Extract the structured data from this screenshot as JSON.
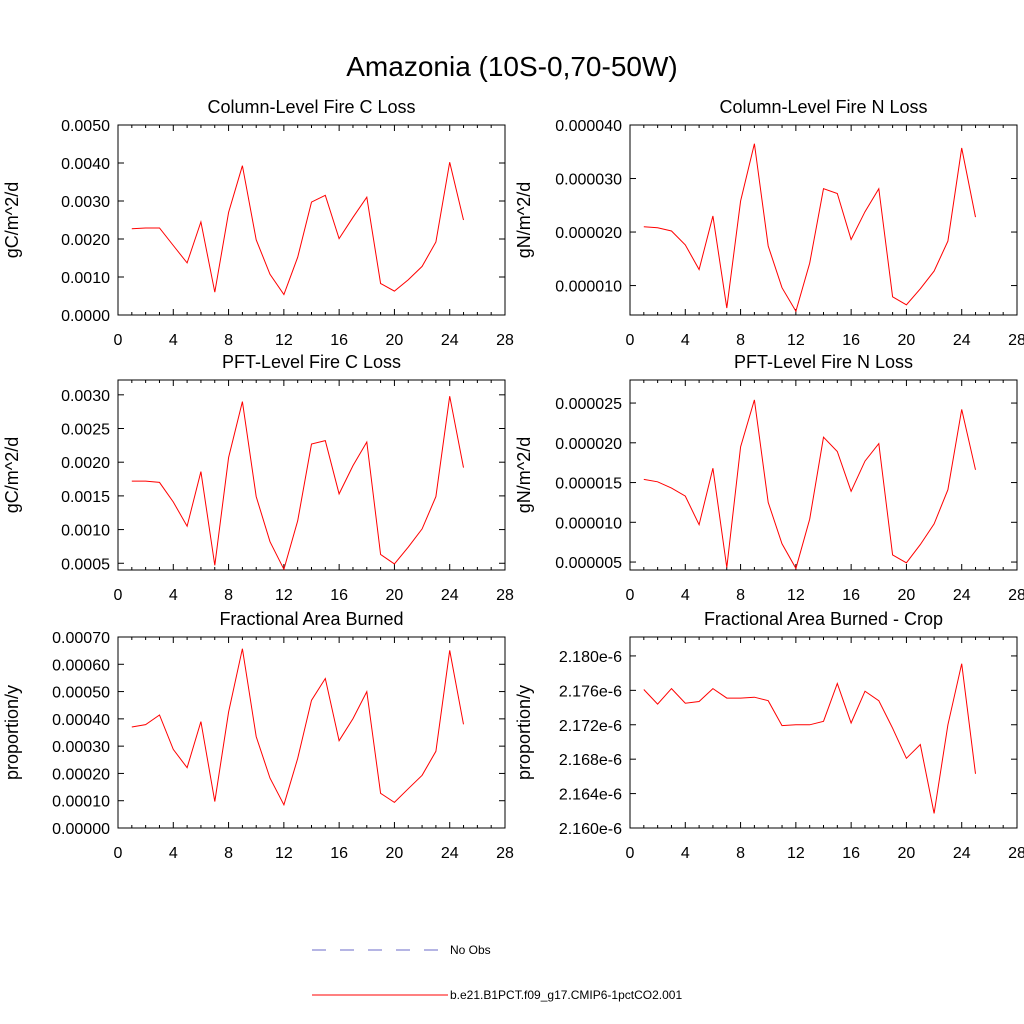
{
  "figure": {
    "title": "Amazonia (10S-0,70-50W)"
  },
  "legend": {
    "items": [
      {
        "label": "No Obs",
        "color": "#6b6bc8",
        "dashed": true
      },
      {
        "label": "b.e21.B1PCT.f09_g17.CMIP6-1pctCO2.001",
        "color": "#ff0000",
        "dashed": false
      }
    ]
  },
  "chart_data": [
    {
      "type": "line",
      "title": "Column-Level Fire C Loss",
      "xlabel": "",
      "ylabel": "gC/m^2/d",
      "xlim": [
        0,
        28
      ],
      "ylim": [
        0,
        0.005
      ],
      "xticks": [
        "0",
        "4",
        "8",
        "12",
        "16",
        "20",
        "24",
        "28"
      ],
      "yticks": [
        "0.0000",
        "0.0010",
        "0.0020",
        "0.0030",
        "0.0040",
        "0.0050"
      ],
      "series": [
        {
          "color": "#ff0000",
          "x": [
            1,
            2,
            3,
            4,
            5,
            6,
            7,
            8,
            9,
            10,
            11,
            12,
            13,
            14,
            15,
            16,
            17,
            18,
            19,
            20,
            21,
            22,
            23,
            24,
            25
          ],
          "y": [
            0.00227,
            0.00229,
            0.00229,
            0.00183,
            0.00137,
            0.00245,
            0.0006,
            0.0027,
            0.00393,
            0.00198,
            0.00107,
            0.00054,
            0.00152,
            0.00297,
            0.00315,
            0.00201,
            0.00257,
            0.0031,
            0.00083,
            0.00063,
            0.00093,
            0.00128,
            0.00192,
            0.00402,
            0.0025
          ]
        }
      ]
    },
    {
      "type": "line",
      "title": "Column-Level Fire N Loss",
      "xlabel": "",
      "ylabel": "gN/m^2/d",
      "xlim": [
        0,
        28
      ],
      "ylim": [
        4.5e-06,
        4e-05
      ],
      "xticks": [
        "0",
        "4",
        "8",
        "12",
        "16",
        "20",
        "24",
        "28"
      ],
      "yticks": [
        "0.000010",
        "0.000020",
        "0.000030",
        "0.000040"
      ],
      "series": [
        {
          "color": "#ff0000",
          "x": [
            1,
            2,
            3,
            4,
            5,
            6,
            7,
            8,
            9,
            10,
            11,
            12,
            13,
            14,
            15,
            16,
            17,
            18,
            19,
            20,
            21,
            22,
            23,
            24,
            25
          ],
          "y": [
            2.1e-05,
            2.08e-05,
            2.02e-05,
            1.76e-05,
            1.3e-05,
            2.3e-05,
            5.8e-06,
            2.58e-05,
            3.65e-05,
            1.74e-05,
            9.6e-06,
            5.2e-06,
            1.42e-05,
            2.81e-05,
            2.72e-05,
            1.86e-05,
            2.38e-05,
            2.81e-05,
            7.9e-06,
            6.4e-06,
            9.4e-06,
            1.27e-05,
            1.83e-05,
            3.57e-05,
            2.28e-05
          ]
        }
      ]
    },
    {
      "type": "line",
      "title": "PFT-Level Fire C Loss",
      "xlabel": "",
      "ylabel": "gC/m^2/d",
      "xlim": [
        0,
        28
      ],
      "ylim": [
        0.0004,
        0.00322
      ],
      "xticks": [
        "0",
        "4",
        "8",
        "12",
        "16",
        "20",
        "24",
        "28"
      ],
      "yticks": [
        "0.0005",
        "0.0010",
        "0.0015",
        "0.0020",
        "0.0025",
        "0.0030"
      ],
      "series": [
        {
          "color": "#ff0000",
          "x": [
            1,
            2,
            3,
            4,
            5,
            6,
            7,
            8,
            9,
            10,
            11,
            12,
            13,
            14,
            15,
            16,
            17,
            18,
            19,
            20,
            21,
            22,
            23,
            24,
            25
          ],
          "y": [
            0.00172,
            0.00172,
            0.0017,
            0.00141,
            0.00105,
            0.00186,
            0.00047,
            0.00207,
            0.0029,
            0.00149,
            0.00082,
            0.00041,
            0.00113,
            0.00227,
            0.00232,
            0.00153,
            0.00195,
            0.0023,
            0.00063,
            0.00049,
            0.00074,
            0.00101,
            0.00149,
            0.00298,
            0.00192
          ]
        }
      ]
    },
    {
      "type": "line",
      "title": "PFT-Level Fire N Loss",
      "xlabel": "",
      "ylabel": "gN/m^2/d",
      "xlim": [
        0,
        28
      ],
      "ylim": [
        4e-06,
        2.79e-05
      ],
      "xticks": [
        "0",
        "4",
        "8",
        "12",
        "16",
        "20",
        "24",
        "28"
      ],
      "yticks": [
        "0.000005",
        "0.000010",
        "0.000015",
        "0.000020",
        "0.000025"
      ],
      "series": [
        {
          "color": "#ff0000",
          "x": [
            1,
            2,
            3,
            4,
            5,
            6,
            7,
            8,
            9,
            10,
            11,
            12,
            13,
            14,
            15,
            16,
            17,
            18,
            19,
            20,
            21,
            22,
            23,
            24,
            25
          ],
          "y": [
            1.54e-05,
            1.51e-05,
            1.43e-05,
            1.33e-05,
            9.7e-06,
            1.68e-05,
            4.3e-06,
            1.95e-05,
            2.54e-05,
            1.25e-05,
            7.3e-06,
            4.2e-06,
            1.04e-05,
            2.07e-05,
            1.89e-05,
            1.39e-05,
            1.77e-05,
            1.99e-05,
            5.9e-06,
            4.9e-06,
            7.2e-06,
            9.8e-06,
            1.41e-05,
            2.42e-05,
            1.66e-05
          ]
        }
      ]
    },
    {
      "type": "line",
      "title": "Fractional Area Burned",
      "xlabel": "",
      "ylabel": "proportion/y",
      "xlim": [
        0,
        28
      ],
      "ylim": [
        0,
        0.0007
      ],
      "xticks": [
        "0",
        "4",
        "8",
        "12",
        "16",
        "20",
        "24",
        "28"
      ],
      "yticks": [
        "0.00000",
        "0.00010",
        "0.00020",
        "0.00030",
        "0.00040",
        "0.00050",
        "0.00060",
        "0.00070"
      ],
      "series": [
        {
          "color": "#ff0000",
          "x": [
            1,
            2,
            3,
            4,
            5,
            6,
            7,
            8,
            9,
            10,
            11,
            12,
            13,
            14,
            15,
            16,
            17,
            18,
            19,
            20,
            21,
            22,
            23,
            24,
            25
          ],
          "y": [
            0.00037,
            0.000379,
            0.000414,
            0.000288,
            0.000221,
            0.00039,
            9.7e-05,
            0.000425,
            0.000657,
            0.000335,
            0.000183,
            8.5e-05,
            0.000255,
            0.000468,
            0.000548,
            0.00032,
            0.000401,
            0.0005,
            0.000127,
            9.4e-05,
            0.000144,
            0.000193,
            0.000281,
            0.000651,
            0.00038
          ]
        }
      ]
    },
    {
      "type": "line",
      "title": "Fractional Area Burned - Crop",
      "xlabel": "",
      "ylabel": "proportion/y",
      "xlim": [
        0,
        28
      ],
      "ylim": [
        2.16e-06,
        2.1822e-06
      ],
      "xticks": [
        "0",
        "4",
        "8",
        "12",
        "16",
        "20",
        "24",
        "28"
      ],
      "yticks": [
        "2.160e-6",
        "2.164e-6",
        "2.168e-6",
        "2.172e-6",
        "2.176e-6",
        "2.180e-6"
      ],
      "series": [
        {
          "color": "#ff0000",
          "x": [
            1,
            2,
            3,
            4,
            5,
            6,
            7,
            8,
            9,
            10,
            11,
            12,
            13,
            14,
            15,
            16,
            17,
            18,
            19,
            20,
            21,
            22,
            23,
            24,
            25
          ],
          "y": [
            2.1761e-06,
            2.1744e-06,
            2.1762e-06,
            2.1745e-06,
            2.1747e-06,
            2.1762e-06,
            2.1751e-06,
            2.1751e-06,
            2.1752e-06,
            2.1748e-06,
            2.1719e-06,
            2.172e-06,
            2.172e-06,
            2.1724e-06,
            2.1768e-06,
            2.1722e-06,
            2.1759e-06,
            2.1748e-06,
            2.1716e-06,
            2.1681e-06,
            2.1697e-06,
            2.1617e-06,
            2.172e-06,
            2.1791e-06,
            2.1663e-06
          ]
        }
      ]
    }
  ]
}
